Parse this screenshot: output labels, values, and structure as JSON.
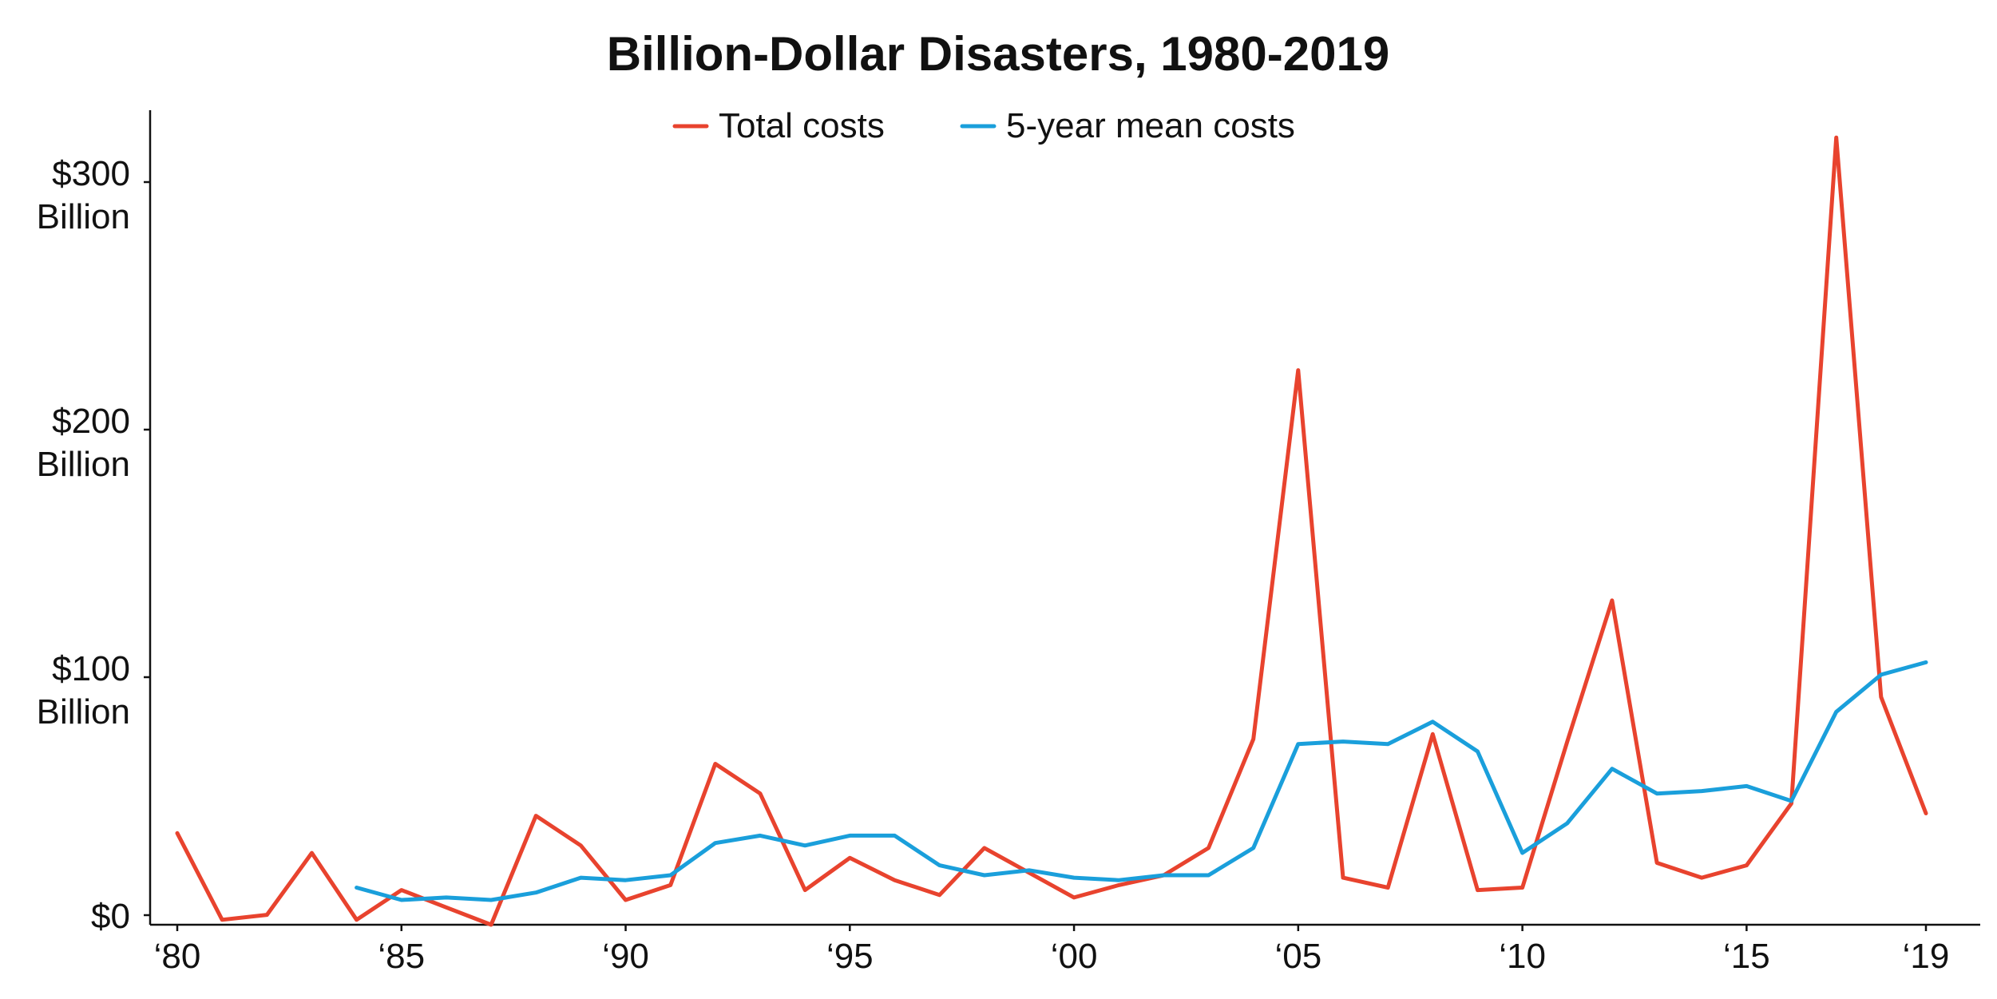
{
  "chart_data": {
    "type": "line",
    "title": "Billion-Dollar Disasters, 1980-2019",
    "xlabel": "",
    "ylabel": "",
    "x": [
      1980,
      1981,
      1982,
      1983,
      1984,
      1985,
      1986,
      1987,
      1988,
      1989,
      1990,
      1991,
      1992,
      1993,
      1994,
      1995,
      1996,
      1997,
      1998,
      1999,
      2000,
      2001,
      2002,
      2003,
      2004,
      2005,
      2006,
      2007,
      2008,
      2009,
      2010,
      2011,
      2012,
      2013,
      2014,
      2015,
      2016,
      2017,
      2018,
      2019
    ],
    "xlim": [
      1980,
      2019
    ],
    "ylim": [
      0,
      325
    ],
    "yticks": [
      {
        "value": 0,
        "line1": "$0",
        "line2": ""
      },
      {
        "value": 100,
        "line1": "$100",
        "line2": "Billion"
      },
      {
        "value": 200,
        "line1": "$200",
        "line2": "Billion"
      },
      {
        "value": 300,
        "line1": "$300",
        "line2": "Billion"
      }
    ],
    "xticks": [
      {
        "value": 1980,
        "label": "‘80"
      },
      {
        "value": 1985,
        "label": "‘85"
      },
      {
        "value": 1990,
        "label": "‘90"
      },
      {
        "value": 1995,
        "label": "‘95"
      },
      {
        "value": 2000,
        "label": "‘00"
      },
      {
        "value": 2005,
        "label": "‘05"
      },
      {
        "value": 2010,
        "label": "‘10"
      },
      {
        "value": 2015,
        "label": "‘15"
      },
      {
        "value": 2019,
        "label": "‘19"
      }
    ],
    "legend_position": "top-center",
    "grid": false,
    "series": [
      {
        "name": "Total costs",
        "color": "#e8432e",
        "x": [
          1980,
          1981,
          1982,
          1983,
          1984,
          1985,
          1986,
          1987,
          1988,
          1989,
          1990,
          1991,
          1992,
          1993,
          1994,
          1995,
          1996,
          1997,
          1998,
          1999,
          2000,
          2001,
          2002,
          2003,
          2004,
          2005,
          2006,
          2007,
          2008,
          2009,
          2010,
          2011,
          2012,
          2013,
          2014,
          2015,
          2016,
          2017,
          2018,
          2019
        ],
        "values": [
          37,
          2,
          4,
          29,
          2,
          14,
          7,
          0,
          44,
          32,
          10,
          16,
          65,
          53,
          14,
          27,
          18,
          12,
          31,
          21,
          11,
          16,
          20,
          31,
          75,
          224,
          19,
          15,
          77,
          14,
          15,
          74,
          131,
          25,
          19,
          24,
          49,
          318,
          92,
          45
        ]
      },
      {
        "name": "5-year mean costs",
        "color": "#1a9fdb",
        "x": [
          1984,
          1985,
          1986,
          1987,
          1988,
          1989,
          1990,
          1991,
          1992,
          1993,
          1994,
          1995,
          1996,
          1997,
          1998,
          1999,
          2000,
          2001,
          2002,
          2003,
          2004,
          2005,
          2006,
          2007,
          2008,
          2009,
          2010,
          2011,
          2012,
          2013,
          2014,
          2015,
          2016,
          2017,
          2018,
          2019
        ],
        "values": [
          15,
          10,
          11,
          10,
          13,
          19,
          18,
          20,
          33,
          36,
          32,
          36,
          36,
          24,
          20,
          22,
          19,
          18,
          20,
          20,
          31,
          73,
          74,
          73,
          82,
          70,
          29,
          41,
          63,
          53,
          54,
          56,
          50,
          86,
          101,
          106
        ]
      }
    ]
  }
}
